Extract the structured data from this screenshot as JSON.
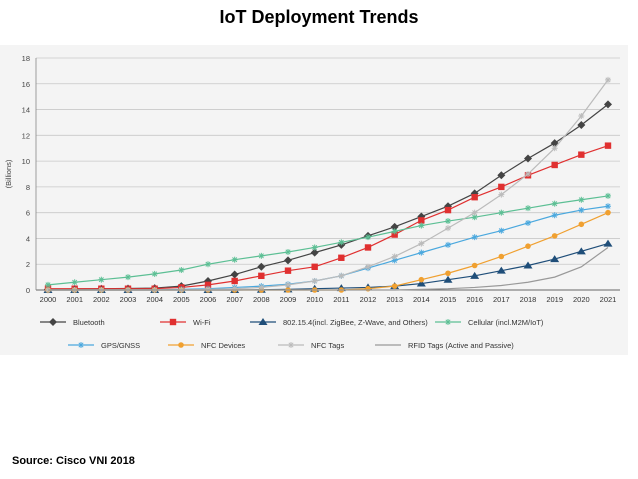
{
  "slide": {
    "title": "IoT Deployment Trends",
    "source": "Source: Cisco VNI 2018"
  },
  "chart_data": {
    "type": "line",
    "title": "",
    "xlabel": "",
    "ylabel": "(Billions)",
    "x": [
      2000,
      2001,
      2002,
      2003,
      2004,
      2005,
      2006,
      2007,
      2008,
      2009,
      2010,
      2011,
      2012,
      2013,
      2014,
      2015,
      2016,
      2017,
      2018,
      2019,
      2020,
      2021
    ],
    "xlim": [
      2000,
      2021
    ],
    "ylim": [
      0,
      18
    ],
    "yticks": [
      0,
      2,
      4,
      6,
      8,
      10,
      12,
      14,
      16,
      18
    ],
    "grid": true,
    "legend_position": "bottom",
    "series": [
      {
        "name": "Bluetooth",
        "color": "#444444",
        "marker": "diamond",
        "values": [
          0.05,
          0.08,
          0.1,
          0.12,
          0.15,
          0.3,
          0.7,
          1.2,
          1.8,
          2.3,
          2.9,
          3.5,
          4.2,
          4.9,
          5.7,
          6.5,
          7.5,
          8.9,
          10.2,
          11.4,
          12.8,
          14.4
        ]
      },
      {
        "name": "Wi-Fi",
        "color": "#e03030",
        "marker": "square",
        "values": [
          0.1,
          0.1,
          0.1,
          0.1,
          0.1,
          0.2,
          0.4,
          0.7,
          1.1,
          1.5,
          1.8,
          2.5,
          3.3,
          4.3,
          5.4,
          6.2,
          7.2,
          8.0,
          8.9,
          9.7,
          10.5,
          11.2
        ]
      },
      {
        "name": "802.15.4(incl. ZigBee, Z-Wave, and Others)",
        "color": "#1f4e79",
        "marker": "triangle",
        "values": [
          0,
          0,
          0,
          0,
          0,
          0,
          0,
          0,
          0.02,
          0.05,
          0.1,
          0.15,
          0.2,
          0.3,
          0.5,
          0.8,
          1.1,
          1.5,
          1.9,
          2.4,
          3.0,
          3.6
        ]
      },
      {
        "name": "Cellular (incl.M2M/IoT)",
        "color": "#5cbf94",
        "marker": "star",
        "values": [
          0.4,
          0.6,
          0.8,
          1.0,
          1.25,
          1.55,
          2.0,
          2.35,
          2.65,
          2.95,
          3.3,
          3.7,
          4.1,
          4.55,
          5.0,
          5.35,
          5.65,
          6.0,
          6.35,
          6.7,
          7.0,
          7.3
        ]
      },
      {
        "name": "GPS/GNSS",
        "color": "#4aa8de",
        "marker": "star",
        "values": [
          0,
          0,
          0,
          0,
          0,
          0.05,
          0.1,
          0.2,
          0.3,
          0.45,
          0.7,
          1.1,
          1.7,
          2.3,
          2.9,
          3.5,
          4.1,
          4.6,
          5.2,
          5.8,
          6.2,
          6.5
        ]
      },
      {
        "name": "NFC Devices",
        "color": "#f0a030",
        "marker": "circle",
        "values": [
          0,
          0,
          0,
          0,
          0,
          0,
          0,
          0,
          0,
          0,
          0,
          0,
          0.1,
          0.3,
          0.8,
          1.3,
          1.9,
          2.6,
          3.4,
          4.2,
          5.1,
          6.0
        ]
      },
      {
        "name": "NFC Tags",
        "color": "#bbbbbb",
        "marker": "star",
        "values": [
          0,
          0,
          0,
          0,
          0,
          0,
          0.05,
          0.1,
          0.2,
          0.4,
          0.7,
          1.1,
          1.8,
          2.6,
          3.6,
          4.8,
          6.0,
          7.4,
          9.0,
          11.0,
          13.5,
          16.3
        ]
      },
      {
        "name": "RFID Tags (Active and Passive)",
        "color": "#999999",
        "marker": "none",
        "values": [
          0,
          0,
          0,
          0,
          0,
          0,
          0,
          0,
          0,
          0,
          0,
          0,
          0,
          0,
          0.05,
          0.1,
          0.2,
          0.35,
          0.6,
          1.0,
          1.8,
          3.3
        ]
      }
    ]
  }
}
